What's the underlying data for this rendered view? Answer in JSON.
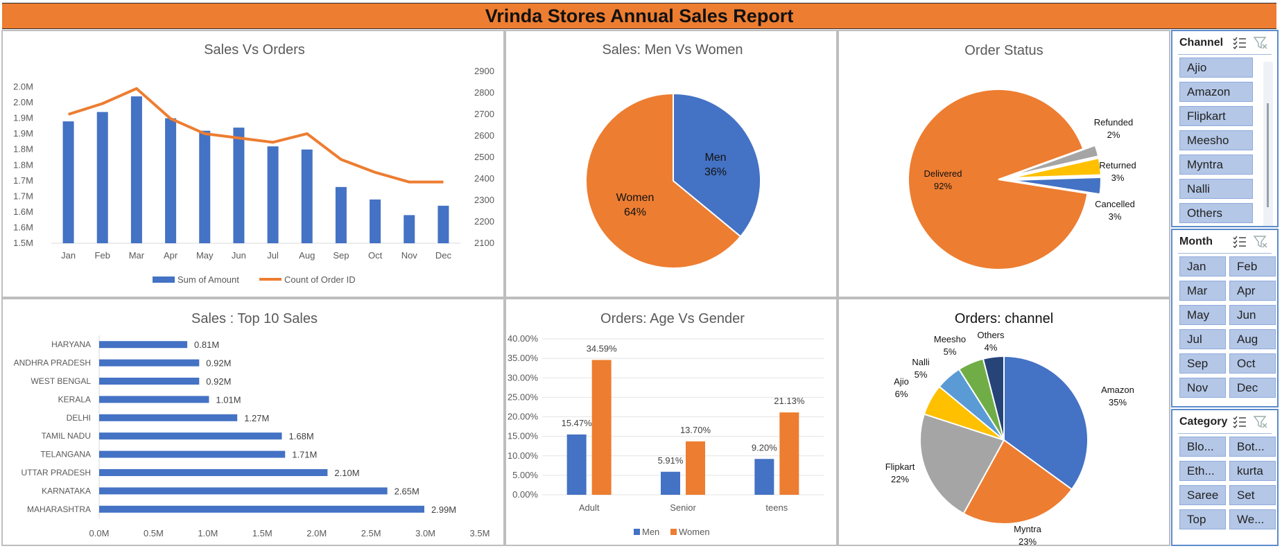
{
  "title": "Vrinda Stores Annual Sales Report",
  "colors": {
    "blue": "#4472C4",
    "orange": "#ED7D31",
    "gray": "#A5A5A5",
    "yellow": "#FFC000",
    "lightblue": "#5B9BD5",
    "green": "#70AD47",
    "navy": "#264478",
    "slicer_button": "#B4C7E7"
  },
  "chart_data": [
    {
      "id": "sales-vs-orders",
      "type": "bar+line",
      "title": "Sales Vs Orders",
      "categories": [
        "Jan",
        "Feb",
        "Mar",
        "Apr",
        "May",
        "Jun",
        "Jul",
        "Aug",
        "Sep",
        "Oct",
        "Nov",
        "Dec"
      ],
      "series": [
        {
          "name": "Sum of Amount",
          "type": "bar",
          "axis": "left",
          "values": [
            1.89,
            1.92,
            1.97,
            1.9,
            1.86,
            1.87,
            1.81,
            1.8,
            1.68,
            1.64,
            1.59,
            1.62
          ]
        },
        {
          "name": "Count of Order ID",
          "type": "line",
          "axis": "right",
          "values": [
            2700,
            2750,
            2820,
            2680,
            2610,
            2590,
            2570,
            2610,
            2490,
            2430,
            2385,
            2385
          ]
        }
      ],
      "yticks_left": [
        "1.5M",
        "1.6M",
        "1.6M",
        "1.7M",
        "1.7M",
        "1.8M",
        "1.8M",
        "1.9M",
        "1.9M",
        "2.0M",
        "2.0M"
      ],
      "ylim_left": [
        1.5,
        2.05
      ],
      "yticks_right": [
        "2100",
        "2200",
        "2300",
        "2400",
        "2500",
        "2600",
        "2700",
        "2800",
        "2900"
      ],
      "ylim_right": [
        2100,
        2900
      ],
      "legend": "bottom"
    },
    {
      "id": "men-vs-women",
      "type": "pie",
      "title": "Sales: Men Vs Women",
      "slices": [
        {
          "label": "Men",
          "value": 36,
          "text": "36%"
        },
        {
          "label": "Women",
          "value": 64,
          "text": "64%"
        }
      ]
    },
    {
      "id": "order-status",
      "type": "pie",
      "title": "Order Status",
      "slices": [
        {
          "label": "Delivered",
          "value": 92,
          "text": "92%"
        },
        {
          "label": "Refunded",
          "value": 2,
          "text": "2%"
        },
        {
          "label": "Returned",
          "value": 3,
          "text": "3%"
        },
        {
          "label": "Cancelled",
          "value": 3,
          "text": "3%"
        }
      ]
    },
    {
      "id": "top10-states",
      "type": "bar",
      "orientation": "horizontal",
      "title": "Sales : Top 10 Sales",
      "categories": [
        "HARYANA",
        "ANDHRA PRADESH",
        "WEST BENGAL",
        "KERALA",
        "DELHI",
        "TAMIL NADU",
        "TELANGANA",
        "UTTAR PRADESH",
        "KARNATAKA",
        "MAHARASHTRA"
      ],
      "values": [
        0.81,
        0.92,
        0.92,
        1.01,
        1.27,
        1.68,
        1.71,
        2.1,
        2.65,
        2.99
      ],
      "labels": [
        "0.81M",
        "0.92M",
        "0.92M",
        "1.01M",
        "1.27M",
        "1.68M",
        "1.71M",
        "2.10M",
        "2.65M",
        "2.99M"
      ],
      "xticks": [
        "0.0M",
        "0.5M",
        "1.0M",
        "1.5M",
        "2.0M",
        "2.5M",
        "3.0M",
        "3.5M"
      ],
      "xlim": [
        0,
        3.5
      ]
    },
    {
      "id": "age-vs-gender",
      "type": "bar",
      "title": "Orders: Age Vs Gender",
      "categories": [
        "Adult",
        "Senior",
        "teens"
      ],
      "series": [
        {
          "name": "Men",
          "values": [
            15.47,
            5.91,
            9.2
          ],
          "labels": [
            "15.47%",
            "5.91%",
            "9.20%"
          ]
        },
        {
          "name": "Women",
          "values": [
            34.59,
            13.7,
            21.13
          ],
          "labels": [
            "34.59%",
            "13.70%",
            "21.13%"
          ]
        }
      ],
      "yticks": [
        "0.00%",
        "5.00%",
        "10.00%",
        "15.00%",
        "20.00%",
        "25.00%",
        "30.00%",
        "35.00%",
        "40.00%"
      ],
      "ylim": [
        0,
        40
      ],
      "legend": "bottom"
    },
    {
      "id": "orders-channel",
      "type": "pie",
      "title": "Orders: channel",
      "slices": [
        {
          "label": "Amazon",
          "value": 35,
          "text": "35%"
        },
        {
          "label": "Myntra",
          "value": 23,
          "text": "23%"
        },
        {
          "label": "Flipkart",
          "value": 22,
          "text": "22%"
        },
        {
          "label": "Ajio",
          "value": 6,
          "text": "6%"
        },
        {
          "label": "Nalli",
          "value": 5,
          "text": "5%"
        },
        {
          "label": "Meesho",
          "value": 5,
          "text": "5%"
        },
        {
          "label": "Others",
          "value": 4,
          "text": "4%"
        }
      ]
    }
  ],
  "slicers": {
    "channel": {
      "title": "Channel",
      "items": [
        "Ajio",
        "Amazon",
        "Flipkart",
        "Meesho",
        "Myntra",
        "Nalli",
        "Others"
      ]
    },
    "month": {
      "title": "Month",
      "items": [
        "Jan",
        "Feb",
        "Mar",
        "Apr",
        "May",
        "Jun",
        "Jul",
        "Aug",
        "Sep",
        "Oct",
        "Nov",
        "Dec"
      ]
    },
    "category": {
      "title": "Category",
      "items": [
        "Blo...",
        "Bot...",
        "Eth...",
        "kurta",
        "Saree",
        "Set",
        "Top",
        "We..."
      ]
    }
  }
}
